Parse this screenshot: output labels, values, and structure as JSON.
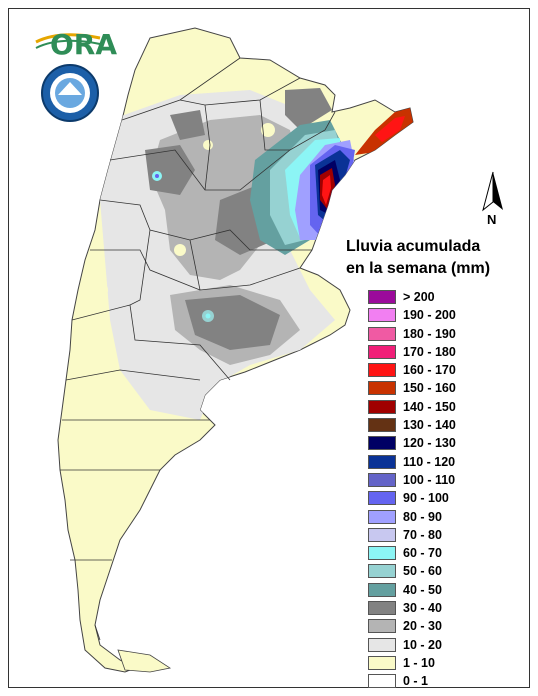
{
  "logo": {
    "text": "ORA"
  },
  "north_label": "N",
  "legend": {
    "title_line1": "Lluvia acumulada",
    "title_line2": "en la semana (mm)",
    "items": [
      {
        "label": "> 200",
        "color": "#9b0a9b"
      },
      {
        "label": "190 - 200",
        "color": "#f27ff2"
      },
      {
        "label": "180 - 190",
        "color": "#f05aa3"
      },
      {
        "label": "170 - 180",
        "color": "#f01e78"
      },
      {
        "label": "160 - 170",
        "color": "#ff1414"
      },
      {
        "label": "150 - 160",
        "color": "#c83200"
      },
      {
        "label": "140 - 150",
        "color": "#a00000"
      },
      {
        "label": "130 - 140",
        "color": "#643214"
      },
      {
        "label": "120 - 130",
        "color": "#000064"
      },
      {
        "label": "110 - 120",
        "color": "#0a3296"
      },
      {
        "label": "100 - 110",
        "color": "#6464c8"
      },
      {
        "label": "90 - 100",
        "color": "#6464f0"
      },
      {
        "label": "80 - 90",
        "color": "#a0a0ff"
      },
      {
        "label": "70 - 80",
        "color": "#c8c8f0"
      },
      {
        "label": "60 - 70",
        "color": "#8cf5f5"
      },
      {
        "label": "50 - 60",
        "color": "#96d2d2"
      },
      {
        "label": "40 - 50",
        "color": "#64a0a0"
      },
      {
        "label": "30 - 40",
        "color": "#828282"
      },
      {
        "label": "20 - 30",
        "color": "#b4b4b4"
      },
      {
        "label": "10 - 20",
        "color": "#e6e6e6"
      },
      {
        "label": "1 - 10",
        "color": "#fafac8"
      },
      {
        "label": "0 - 1",
        "color": "#ffffff"
      }
    ]
  }
}
